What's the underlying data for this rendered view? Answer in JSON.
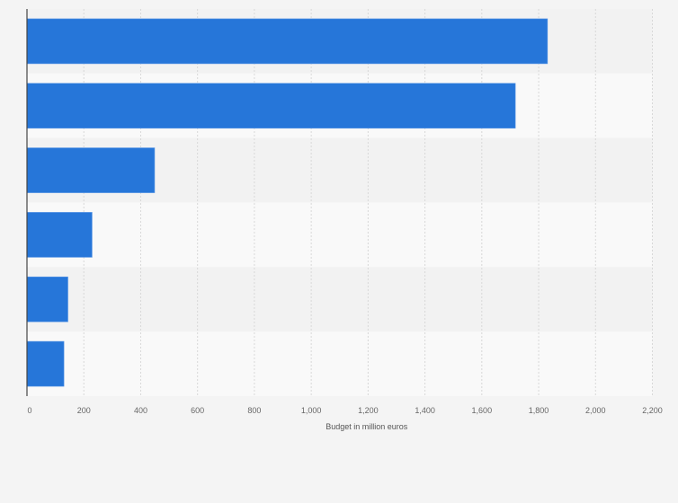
{
  "chart_data": {
    "type": "bar",
    "orientation": "horizontal",
    "categories": [
      "",
      "",
      "",
      "",
      "",
      ""
    ],
    "values": [
      1831,
      1718,
      449,
      229,
      144,
      130
    ],
    "title": "",
    "xlabel": "Budget in million euros",
    "ylabel": "",
    "xlim": [
      0,
      2200
    ],
    "ticks": [
      0,
      200,
      400,
      600,
      800,
      1000,
      1200,
      1400,
      1600,
      1800,
      2000,
      2200
    ],
    "tick_labels": [
      "0",
      "200",
      "400",
      "600",
      "800",
      "1,000",
      "1,200",
      "1,400",
      "1,600",
      "1,800",
      "2,000",
      "2,200"
    ],
    "grid": true,
    "bar_color": "#2676d9",
    "band_colors": [
      "#f2f2f2",
      "#f9f9f9"
    ]
  }
}
